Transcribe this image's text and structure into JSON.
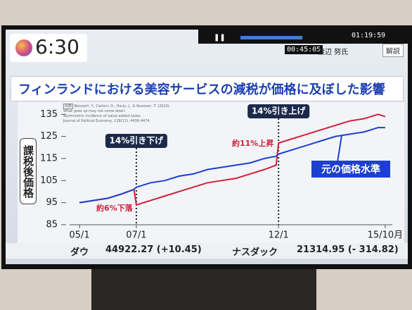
{
  "header": {
    "clock": "6:30",
    "total": "01:19:59",
    "elapsed": "00:45:05",
    "guest": "渡辺 努氏",
    "badge": "解説"
  },
  "chart_data": {
    "type": "line",
    "title": "フィンランドにおける美容サービスの減税が価格に及ぼした影響",
    "source_label": "出典",
    "source": [
      "Benzarti, Y., Carloni, D., Harju, J., & Kosonen, T. (2020).",
      "What goes up may not come down:",
      "asymmetric incidence of value-added taxes.",
      "Journal of Political Economy, 128(12), 4436-4474."
    ],
    "y_label": "課税後価格",
    "x": [
      0,
      6,
      12,
      18,
      23,
      24,
      30,
      36,
      42,
      48,
      54,
      60,
      66,
      72,
      78,
      83,
      84,
      90,
      96,
      102,
      108,
      114,
      120,
      126,
      129
    ],
    "series": [
      {
        "color": "#d0203a",
        "values": [
          95,
          96,
          97,
          99,
          101,
          94,
          96,
          98,
          100,
          102,
          104,
          105,
          106,
          108,
          110,
          112,
          122,
          124,
          126,
          128,
          130,
          132,
          133,
          135,
          134
        ]
      },
      {
        "name": "元の価格水準",
        "color": "#1c3fd0",
        "values": [
          95,
          96,
          97,
          99,
          101,
          102,
          104,
          105,
          107,
          108,
          110,
          111,
          112,
          113,
          115,
          116,
          117,
          119,
          121,
          123,
          125,
          126,
          127,
          129,
          129
        ]
      }
    ],
    "xlim": [
      0,
      132
    ],
    "xticks": [
      {
        "value": 0,
        "label": "05/1"
      },
      {
        "value": 24,
        "label": "07/1"
      },
      {
        "value": 84,
        "label": "12/1"
      },
      {
        "value": 129,
        "label": "15/10月"
      }
    ],
    "ylim": [
      85,
      137
    ],
    "yticks": [
      85,
      95,
      105,
      115,
      125,
      135
    ],
    "events": [
      {
        "label": "14%引き下げ",
        "x": 24
      },
      {
        "label": "14%引き上げ",
        "x": 84
      }
    ],
    "notes": [
      "約11%上昇",
      "約6%下落"
    ]
  },
  "ticker": {
    "dow_label": "ダウ",
    "dow_value": "44922.27 (+10.45)",
    "nasdaq_label": "ナスダック",
    "nasdaq_value": "21314.95 (- 314.82)"
  }
}
